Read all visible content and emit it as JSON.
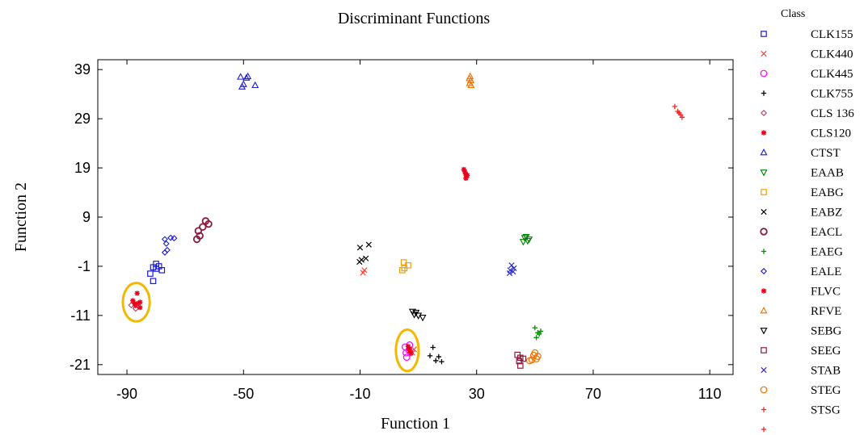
{
  "chart_data": {
    "type": "scatter",
    "title": "Discriminant Functions",
    "xlabel": "Function 1",
    "ylabel": "Function 2",
    "xlim": [
      -100,
      118
    ],
    "ylim": [
      -23,
      41
    ],
    "xticks": [
      "-90",
      "-50",
      "-10",
      "30",
      "70",
      "110"
    ],
    "yticks": [
      "39",
      "29",
      "19",
      "9",
      "-1",
      "-11",
      "-21"
    ],
    "legend_title": "Class",
    "legend_position": "right",
    "series": [
      {
        "name": "CLK155",
        "marker": "square",
        "color": "#1c1cd4",
        "points": [
          [
            -82,
            -2.5
          ],
          [
            -80,
            -0.5
          ],
          [
            -80,
            -1.5
          ],
          [
            -79,
            -1
          ],
          [
            -81,
            -4
          ],
          [
            -78,
            -1.8
          ],
          [
            -81,
            -1.2
          ]
        ]
      },
      {
        "name": "CLK440",
        "marker": "x",
        "color": "#ff4040",
        "points": [
          [
            -8.5,
            -1.8
          ],
          [
            -9,
            -2.3
          ],
          [
            8,
            -18.6
          ],
          [
            8.5,
            -17.9
          ]
        ]
      },
      {
        "name": "CLK445",
        "marker": "circle",
        "color": "#ff00ff",
        "points": [
          [
            6,
            -19.5
          ],
          [
            5.5,
            -17.4
          ],
          [
            7,
            -17
          ],
          [
            5.8,
            -18.6
          ],
          [
            6.8,
            -18.1
          ]
        ]
      },
      {
        "name": "CLK755",
        "marker": "plus",
        "color": "#000000",
        "points": [
          [
            14,
            -19.2
          ],
          [
            16,
            -20.2
          ],
          [
            17,
            -19.4
          ],
          [
            18,
            -20.4
          ],
          [
            15,
            -17.5
          ]
        ]
      },
      {
        "name": "CLS 136",
        "marker": "diamond",
        "color": "#b8405e",
        "points": [
          [
            -87,
            -9.6
          ],
          [
            -88.5,
            -8.9
          ]
        ]
      },
      {
        "name": "CLS120",
        "marker": "asterisk",
        "color": "#e8001c",
        "points": [
          [
            25.6,
            18.7
          ],
          [
            26,
            18.2
          ],
          [
            26.2,
            17.8
          ],
          [
            26.5,
            17.2
          ],
          [
            26.8,
            17.5
          ],
          [
            26.3,
            16.9
          ]
        ]
      },
      {
        "name": "CTST",
        "marker": "triangle",
        "color": "#1c1cd4",
        "points": [
          [
            -51,
            37.5
          ],
          [
            -50,
            36
          ],
          [
            -49,
            37.3
          ],
          [
            -50.5,
            35.5
          ],
          [
            -46,
            35.8
          ],
          [
            -48.5,
            37.6
          ]
        ]
      },
      {
        "name": "EAAB",
        "marker": "triangle-down",
        "color": "#008000",
        "points": [
          [
            46,
            4
          ],
          [
            47,
            5
          ],
          [
            48,
            4.5
          ],
          [
            47.5,
            4.2
          ],
          [
            46.5,
            4.8
          ]
        ]
      },
      {
        "name": "EABG",
        "marker": "square",
        "color": "#f0a000",
        "points": [
          [
            5,
            -0.2
          ],
          [
            6.5,
            -0.8
          ],
          [
            5.2,
            -1.4
          ],
          [
            4.5,
            -1.8
          ]
        ]
      },
      {
        "name": "EABZ",
        "marker": "x",
        "color": "#000000",
        "points": [
          [
            -10,
            2.8
          ],
          [
            -9.5,
            0.3
          ],
          [
            -8,
            0.6
          ],
          [
            -7,
            3.4
          ],
          [
            -10.2,
            -0.1
          ]
        ]
      },
      {
        "name": "EACL",
        "marker": "circle-heavy",
        "color": "#8c1c3c",
        "points": [
          [
            -64,
            7
          ],
          [
            -65.5,
            6.2
          ],
          [
            -65,
            5.2
          ],
          [
            -63,
            8.2
          ],
          [
            -62,
            7.6
          ],
          [
            -66,
            4.5
          ]
        ]
      },
      {
        "name": "EAEG",
        "marker": "plus",
        "color": "#009000",
        "points": [
          [
            50,
            -13.5
          ],
          [
            51,
            -14.5
          ],
          [
            52,
            -14.2
          ],
          [
            50.5,
            -15.5
          ],
          [
            51.5,
            -14.8
          ]
        ]
      },
      {
        "name": "EALE",
        "marker": "diamond",
        "color": "#1c1cd4",
        "points": [
          [
            -77,
            4.5
          ],
          [
            -75,
            4.8
          ],
          [
            -73.8,
            4.7
          ],
          [
            -76.5,
            3.6
          ],
          [
            -77,
            1.8
          ],
          [
            -76.2,
            2.3
          ]
        ]
      },
      {
        "name": "FLVC",
        "marker": "asterisk",
        "color": "#e8001c",
        "points": [
          [
            -88,
            -8
          ],
          [
            -87,
            -9
          ],
          [
            -86,
            -8.5
          ],
          [
            -85.5,
            -9.4
          ],
          [
            -86.5,
            -6.5
          ],
          [
            -85.5,
            -8.3
          ],
          [
            -87.3,
            -8.6
          ],
          [
            6.5,
            -17.3
          ],
          [
            7,
            -18.2
          ],
          [
            7.5,
            -18.7
          ],
          [
            6.8,
            -17.8
          ]
        ]
      },
      {
        "name": "RFVE",
        "marker": "triangle",
        "color": "#f07000",
        "points": [
          [
            27.5,
            37.2
          ],
          [
            28,
            36.8
          ],
          [
            27.6,
            36.2
          ],
          [
            28.1,
            35.8
          ],
          [
            27.8,
            37.6
          ]
        ]
      },
      {
        "name": "SEBG",
        "marker": "triangle-down",
        "color": "#000000",
        "points": [
          [
            8,
            -10.2
          ],
          [
            9.2,
            -10.4
          ],
          [
            10,
            -11
          ],
          [
            11.5,
            -11.4
          ],
          [
            8.6,
            -10.8
          ]
        ]
      },
      {
        "name": "SEEG",
        "marker": "square",
        "color": "#8c1c3c",
        "points": [
          [
            44,
            -19
          ],
          [
            45,
            -19.6
          ],
          [
            46,
            -19.8
          ],
          [
            44.6,
            -20.3
          ],
          [
            45,
            -21.2
          ]
        ]
      },
      {
        "name": "STAB",
        "marker": "x",
        "color": "#2c2cd4",
        "points": [
          [
            42,
            -0.8
          ],
          [
            41.5,
            -1.8
          ],
          [
            42.5,
            -2.1
          ],
          [
            41.3,
            -2.4
          ],
          [
            42.8,
            -1.4
          ]
        ]
      },
      {
        "name": "STEG",
        "marker": "circle",
        "color": "#f07000",
        "points": [
          [
            50,
            -18.6
          ],
          [
            51,
            -19.3
          ],
          [
            49,
            -20
          ],
          [
            50.5,
            -19.8
          ],
          [
            49.6,
            -19.1
          ],
          [
            48.2,
            -20.2
          ]
        ]
      },
      {
        "name": "STSG",
        "marker": "plus",
        "color": "#ff2020",
        "points": [
          [
            98,
            31.5
          ],
          [
            99,
            30.5
          ],
          [
            100,
            29.8
          ],
          [
            99.5,
            30.2
          ],
          [
            100.5,
            29.3
          ]
        ]
      }
    ],
    "extra_legend_markers": [
      {
        "marker": "plus",
        "color": "#ff2020"
      }
    ],
    "annotations": [
      {
        "shape": "ellipse",
        "color": "#f5b800",
        "cx": -86.8,
        "cy": -8.3,
        "rx": 4.6,
        "ry": 3.9
      },
      {
        "shape": "ellipse",
        "color": "#f5b800",
        "cx": 6.2,
        "cy": -18.1,
        "rx": 3.9,
        "ry": 4.2
      }
    ]
  }
}
